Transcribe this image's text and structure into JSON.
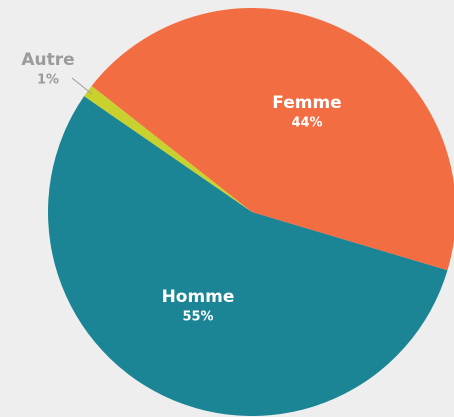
{
  "chart_data": {
    "type": "pie",
    "categories": [
      "Homme",
      "Autre",
      "Femme"
    ],
    "values": [
      55,
      1,
      44
    ],
    "value_labels": [
      "55%",
      "1%",
      "44%"
    ],
    "colors": [
      "#1b8595",
      "#c9d12f",
      "#f36d43"
    ]
  }
}
